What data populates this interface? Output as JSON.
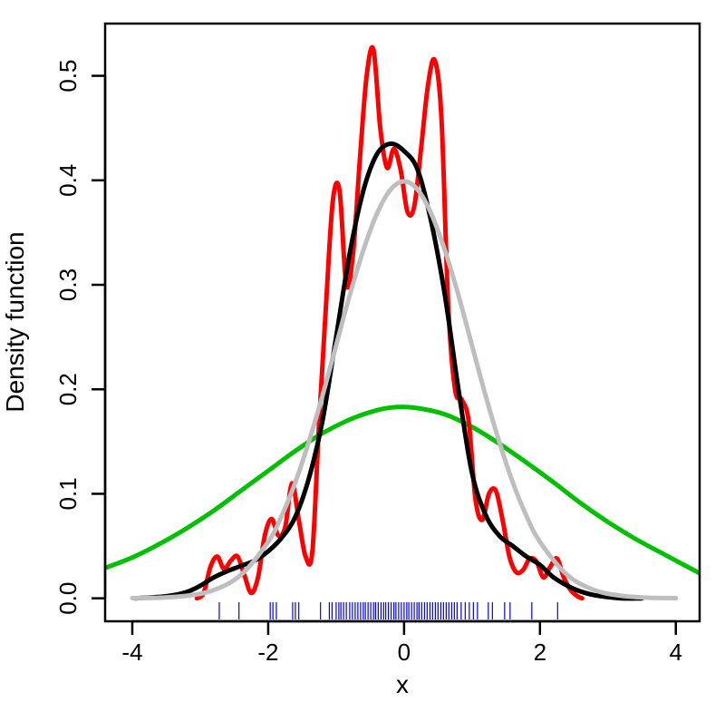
{
  "chart_data": {
    "type": "line",
    "title": "",
    "xlabel": "x",
    "ylabel": "Density function",
    "xlim": [
      -4.4,
      4.35
    ],
    "ylim": [
      -0.022,
      0.55
    ],
    "xticks": [
      -4,
      -2,
      0,
      2,
      4
    ],
    "xtick_labels": [
      "-4",
      "-2",
      "0",
      "2",
      "4"
    ],
    "yticks": [
      0.0,
      0.1,
      0.2,
      0.3,
      0.4,
      0.5
    ],
    "ytick_labels": [
      "0.0",
      "0.1",
      "0.2",
      "0.3",
      "0.4",
      "0.5"
    ],
    "grid": false,
    "series": [
      {
        "color": "#00c000",
        "x": [
          -4.4,
          -4.0,
          -3.6,
          -3.2,
          -2.8,
          -2.4,
          -2.0,
          -1.6,
          -1.2,
          -0.8,
          -0.4,
          -0.1,
          0.2,
          0.6,
          1.0,
          1.4,
          1.8,
          2.2,
          2.6,
          3.0,
          3.4,
          3.8,
          4.35
        ],
        "y": [
          0.029,
          0.039,
          0.052,
          0.067,
          0.084,
          0.103,
          0.122,
          0.141,
          0.158,
          0.171,
          0.18,
          0.183,
          0.182,
          0.176,
          0.164,
          0.148,
          0.13,
          0.111,
          0.091,
          0.073,
          0.057,
          0.043,
          0.024
        ]
      },
      {
        "color": "#ff0000",
        "x": [
          -3.05,
          -2.95,
          -2.85,
          -2.75,
          -2.65,
          -2.55,
          -2.45,
          -2.35,
          -2.25,
          -2.15,
          -2.05,
          -1.95,
          -1.85,
          -1.75,
          -1.65,
          -1.55,
          -1.45,
          -1.35,
          -1.25,
          -1.15,
          -1.05,
          -0.95,
          -0.85,
          -0.75,
          -0.65,
          -0.55,
          -0.45,
          -0.35,
          -0.25,
          -0.15,
          -0.05,
          0.05,
          0.15,
          0.25,
          0.35,
          0.45,
          0.55,
          0.65,
          0.75,
          0.85,
          0.95,
          1.05,
          1.15,
          1.25,
          1.35,
          1.45,
          1.55,
          1.65,
          1.75,
          1.85,
          1.95,
          2.05,
          2.15,
          2.25,
          2.35,
          2.45,
          2.55,
          2.62
        ],
        "y": [
          0.0,
          0.005,
          0.03,
          0.04,
          0.028,
          0.036,
          0.04,
          0.022,
          0.005,
          0.02,
          0.06,
          0.076,
          0.06,
          0.068,
          0.11,
          0.075,
          0.04,
          0.045,
          0.17,
          0.28,
          0.38,
          0.39,
          0.3,
          0.33,
          0.42,
          0.5,
          0.525,
          0.45,
          0.412,
          0.43,
          0.41,
          0.37,
          0.375,
          0.43,
          0.49,
          0.515,
          0.46,
          0.28,
          0.2,
          0.19,
          0.17,
          0.095,
          0.075,
          0.1,
          0.103,
          0.075,
          0.04,
          0.025,
          0.027,
          0.038,
          0.035,
          0.02,
          0.03,
          0.038,
          0.02,
          0.008,
          0.002,
          0.0
        ]
      },
      {
        "color": "#000000",
        "x": [
          -3.95,
          -3.5,
          -3.2,
          -3.0,
          -2.8,
          -2.6,
          -2.4,
          -2.2,
          -2.0,
          -1.8,
          -1.6,
          -1.4,
          -1.2,
          -1.0,
          -0.8,
          -0.6,
          -0.4,
          -0.2,
          0.0,
          0.2,
          0.4,
          0.6,
          0.8,
          1.0,
          1.2,
          1.4,
          1.6,
          1.8,
          2.0,
          2.2,
          2.5,
          2.8,
          3.2,
          3.5
        ],
        "y": [
          0.0,
          0.002,
          0.006,
          0.012,
          0.02,
          0.026,
          0.031,
          0.036,
          0.045,
          0.058,
          0.078,
          0.115,
          0.17,
          0.25,
          0.33,
          0.39,
          0.425,
          0.435,
          0.428,
          0.41,
          0.36,
          0.29,
          0.2,
          0.12,
          0.08,
          0.06,
          0.05,
          0.04,
          0.032,
          0.02,
          0.009,
          0.003,
          0.0,
          0.0
        ]
      },
      {
        "color": "#bebebe",
        "x": [
          -4.0,
          -3.6,
          -3.2,
          -2.8,
          -2.4,
          -2.0,
          -1.8,
          -1.6,
          -1.4,
          -1.2,
          -1.0,
          -0.8,
          -0.6,
          -0.4,
          -0.2,
          0.0,
          0.2,
          0.4,
          0.6,
          0.8,
          1.0,
          1.2,
          1.4,
          1.6,
          1.8,
          2.0,
          2.4,
          2.8,
          3.2,
          3.6,
          4.0
        ],
        "y": [
          0.0001,
          0.0006,
          0.0024,
          0.0079,
          0.0224,
          0.054,
          0.079,
          0.111,
          0.15,
          0.194,
          0.242,
          0.29,
          0.333,
          0.368,
          0.391,
          0.399,
          0.391,
          0.368,
          0.333,
          0.29,
          0.242,
          0.194,
          0.15,
          0.111,
          0.079,
          0.054,
          0.0224,
          0.0079,
          0.0024,
          0.0006,
          0.0001
        ]
      }
    ],
    "rug": {
      "color": "#0000ff",
      "x": [
        -2.72,
        -2.43,
        -1.97,
        -1.93,
        -1.88,
        -1.64,
        -1.6,
        -1.55,
        -1.23,
        -1.1,
        -1.06,
        -1.0,
        -0.96,
        -0.93,
        -0.89,
        -0.85,
        -0.8,
        -0.76,
        -0.72,
        -0.68,
        -0.64,
        -0.6,
        -0.57,
        -0.53,
        -0.49,
        -0.45,
        -0.42,
        -0.38,
        -0.34,
        -0.3,
        -0.27,
        -0.23,
        -0.19,
        -0.15,
        -0.12,
        -0.08,
        -0.04,
        0.0,
        0.04,
        0.07,
        0.11,
        0.15,
        0.19,
        0.22,
        0.26,
        0.3,
        0.34,
        0.38,
        0.42,
        0.46,
        0.5,
        0.54,
        0.58,
        0.62,
        0.66,
        0.7,
        0.74,
        0.78,
        0.84,
        0.9,
        0.96,
        1.02,
        1.08,
        1.24,
        1.3,
        1.48,
        1.56,
        1.88,
        2.26
      ]
    }
  }
}
